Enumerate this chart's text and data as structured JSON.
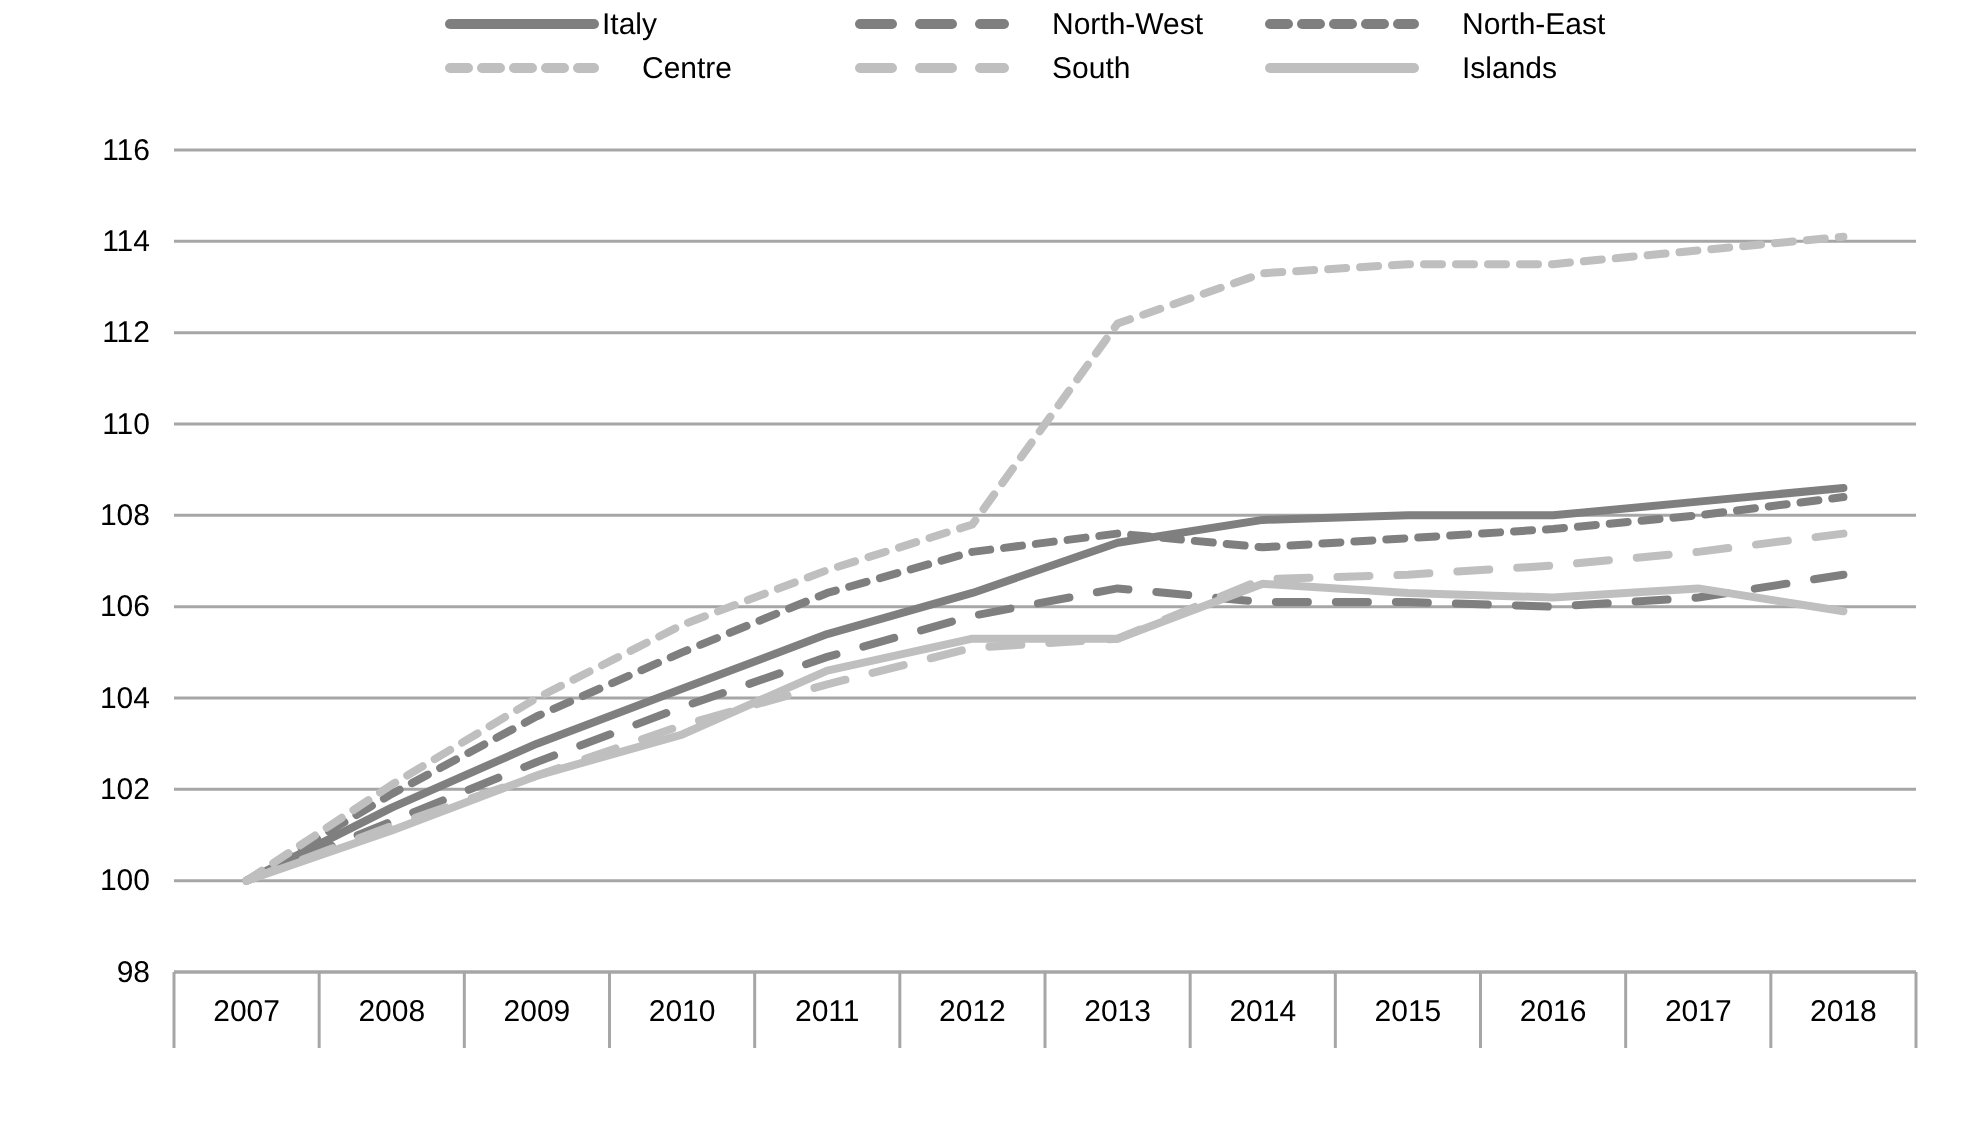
{
  "chart_data": {
    "type": "line",
    "categories": [
      "2007",
      "2008",
      "2009",
      "2010",
      "2011",
      "2012",
      "2013",
      "2014",
      "2015",
      "2016",
      "2017",
      "2018"
    ],
    "ylim": [
      98,
      116
    ],
    "yticks": [
      98,
      100,
      102,
      104,
      106,
      108,
      110,
      112,
      114,
      116
    ],
    "grid": "y",
    "legend": "top",
    "marker": "none",
    "series": [
      {
        "name": "Italy",
        "color": "#7f7f7f",
        "line_style": "solid",
        "values": [
          100,
          101.6,
          103.0,
          104.2,
          105.4,
          106.3,
          107.4,
          107.9,
          108.0,
          108.0,
          108.3,
          108.6
        ]
      },
      {
        "name": "North-West",
        "color": "#7f7f7f",
        "line_style": "dashed",
        "values": [
          100,
          101.3,
          102.6,
          103.8,
          104.9,
          105.8,
          106.4,
          106.1,
          106.1,
          106.0,
          106.2,
          106.7
        ]
      },
      {
        "name": "North-East",
        "color": "#7f7f7f",
        "line_style": "dotted",
        "values": [
          100,
          101.9,
          103.6,
          105.0,
          106.3,
          107.2,
          107.6,
          107.3,
          107.5,
          107.7,
          108.0,
          108.4
        ]
      },
      {
        "name": "Centre",
        "color": "#bfbfbf",
        "line_style": "dotted",
        "values": [
          100,
          102.1,
          104.0,
          105.6,
          106.8,
          107.8,
          112.2,
          113.3,
          113.5,
          113.5,
          113.8,
          114.1
        ]
      },
      {
        "name": "South",
        "color": "#bfbfbf",
        "line_style": "dashed",
        "values": [
          100,
          101.2,
          102.3,
          103.4,
          104.3,
          105.1,
          105.3,
          106.6,
          106.7,
          106.9,
          107.2,
          107.6
        ]
      },
      {
        "name": "Islands",
        "color": "#bfbfbf",
        "line_style": "solid",
        "values": [
          100,
          101.1,
          102.3,
          103.2,
          104.6,
          105.3,
          105.3,
          106.5,
          106.3,
          106.2,
          106.4,
          105.9
        ]
      }
    ]
  }
}
